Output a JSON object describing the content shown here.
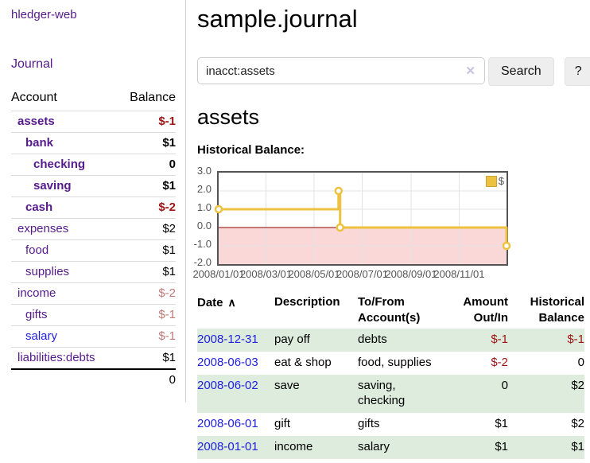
{
  "brand": "hledger-web",
  "nav": {
    "journal": "Journal"
  },
  "accounts_panel": {
    "headers": {
      "account": "Account",
      "balance": "Balance"
    },
    "rows": [
      {
        "name": "assets",
        "balance": "$-1",
        "level": 1,
        "bold": true,
        "name_style": "purple",
        "balance_style": "negstrong"
      },
      {
        "name": "bank",
        "balance": "$1",
        "level": 2,
        "bold": true,
        "name_style": "purple",
        "balance_style": "plain"
      },
      {
        "name": "checking",
        "balance": "0",
        "level": 3,
        "bold": true,
        "name_style": "purple",
        "balance_style": "plain"
      },
      {
        "name": "saving",
        "balance": "$1",
        "level": 3,
        "bold": true,
        "name_style": "purple",
        "balance_style": "plain"
      },
      {
        "name": "cash",
        "balance": "$-2",
        "level": 2,
        "bold": true,
        "name_style": "purple",
        "balance_style": "negstrong"
      },
      {
        "name": "expenses",
        "balance": "$2",
        "level": 1,
        "bold": false,
        "name_style": "purple",
        "balance_style": "plain"
      },
      {
        "name": "food",
        "balance": "$1",
        "level": 2,
        "bold": false,
        "name_style": "purple",
        "balance_style": "plain"
      },
      {
        "name": "supplies",
        "balance": "$1",
        "level": 2,
        "bold": false,
        "name_style": "purple",
        "balance_style": "plain"
      },
      {
        "name": "income",
        "balance": "$-2",
        "level": 1,
        "bold": false,
        "name_style": "purple",
        "balance_style": "negsoft"
      },
      {
        "name": "gifts",
        "balance": "$-1",
        "level": 2,
        "bold": false,
        "name_style": "purple",
        "balance_style": "negsoft"
      },
      {
        "name": "salary",
        "balance": "$-1",
        "level": 2,
        "bold": false,
        "name_style": "blue",
        "balance_style": "negsoft"
      },
      {
        "name": "liabilities:debts",
        "balance": "$1",
        "level": 1,
        "bold": false,
        "name_style": "purple",
        "balance_style": "plain"
      }
    ],
    "total": "0"
  },
  "main": {
    "title": "sample.journal",
    "search": {
      "value": "inacct:assets",
      "clear_icon": "✕",
      "search_button": "Search",
      "help_button": "?"
    },
    "account_heading": "assets",
    "chart_title": "Historical Balance:"
  },
  "chart_data": {
    "type": "line",
    "title": "Historical Balance",
    "step": true,
    "xlim": [
      0,
      365
    ],
    "ylim": [
      -2,
      3
    ],
    "grid": true,
    "legend": {
      "label": "$",
      "swatch_color": "#edc240",
      "position": "top-right"
    },
    "series": [
      {
        "name": "$",
        "color": "#edc240",
        "points": [
          {
            "date": "2008-01-01",
            "x": 0,
            "y": 1
          },
          {
            "date": "2008-06-01",
            "x": 152,
            "y": 2
          },
          {
            "date": "2008-06-03",
            "x": 154,
            "y": 0
          },
          {
            "date": "2008-12-31",
            "x": 365,
            "y": -1
          }
        ]
      }
    ],
    "x_ticks": [
      {
        "x": 0,
        "label": "2008/01/01"
      },
      {
        "x": 60,
        "label": "2008/03/01"
      },
      {
        "x": 121,
        "label": "2008/05/01"
      },
      {
        "x": 182,
        "label": "2008/07/01"
      },
      {
        "x": 244,
        "label": "2008/09/01"
      },
      {
        "x": 305,
        "label": "2008/11/01"
      }
    ],
    "y_ticks": [
      {
        "y": 3,
        "label": "3.0"
      },
      {
        "y": 2,
        "label": "2.0"
      },
      {
        "y": 1,
        "label": "1.0"
      },
      {
        "y": 0,
        "label": "0.0"
      },
      {
        "y": -1,
        "label": "-1.0"
      },
      {
        "y": -2,
        "label": "-2.0"
      }
    ],
    "negative_region": {
      "from": 0,
      "to": -2,
      "fill": "#fbd8d8",
      "line_color": "#8b0000"
    }
  },
  "register": {
    "headers": {
      "date": "Date",
      "sort_icon": "∧",
      "description": "Description",
      "account_l1": "To/From",
      "account_l2": "Account(s)",
      "amount_l1": "Amount",
      "amount_l2": "Out/In",
      "balance_l1": "Historical",
      "balance_l2": "Balance"
    },
    "rows": [
      {
        "date": "2008-12-31",
        "description": "pay off",
        "accounts": "debts",
        "amount": "$-1",
        "amount_neg": true,
        "balance": "$-1",
        "balance_neg": true
      },
      {
        "date": "2008-06-03",
        "description": "eat & shop",
        "accounts": "food, supplies",
        "amount": "$-2",
        "amount_neg": true,
        "balance": "0",
        "balance_neg": false
      },
      {
        "date": "2008-06-02",
        "description": "save",
        "accounts": "saving, checking",
        "amount": "0",
        "amount_neg": false,
        "balance": "$2",
        "balance_neg": false
      },
      {
        "date": "2008-06-01",
        "description": "gift",
        "accounts": "gifts",
        "amount": "$1",
        "amount_neg": false,
        "balance": "$2",
        "balance_neg": false
      },
      {
        "date": "2008-01-01",
        "description": "income",
        "accounts": "salary",
        "amount": "$1",
        "amount_neg": false,
        "balance": "$1",
        "balance_neg": false
      }
    ]
  }
}
